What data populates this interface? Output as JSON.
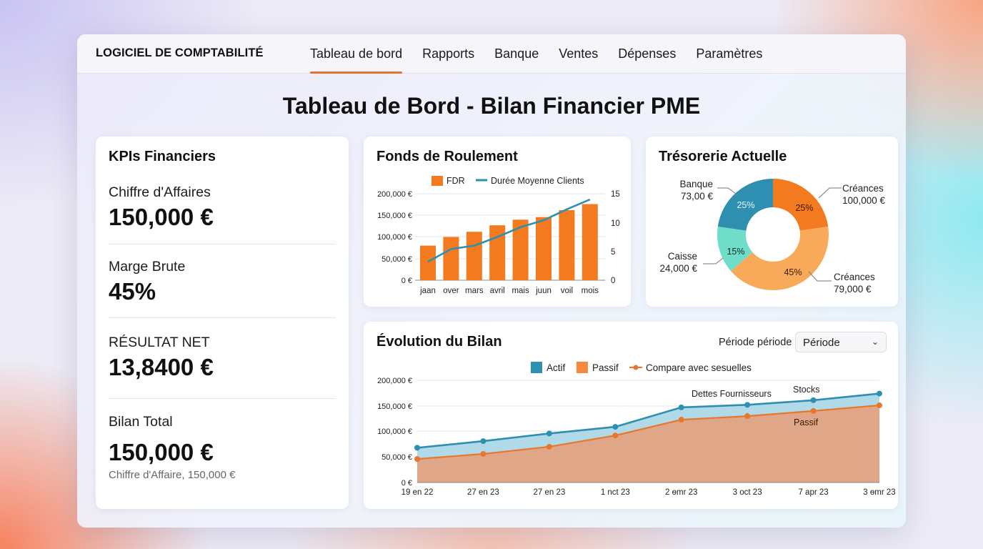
{
  "app": {
    "title": "LOGICIEL DE COMPTABILITÉ",
    "nav": [
      {
        "label": "Tableau de bord",
        "active": true
      },
      {
        "label": "Rapports",
        "active": false
      },
      {
        "label": "Banque",
        "active": false
      },
      {
        "label": "Ventes",
        "active": false
      },
      {
        "label": "Dépenses",
        "active": false
      },
      {
        "label": "Paramètres",
        "active": false
      }
    ]
  },
  "page": {
    "title": "Tableau de Bord - Bilan Financier PME"
  },
  "kpis": {
    "title": "KPIs Financiers",
    "items": [
      {
        "label": "Chiffre d'Affaires",
        "value": "150,000 €"
      },
      {
        "label": "Marge Brute",
        "value": "45%"
      },
      {
        "label": "RÉSULTAT NET",
        "value": "13,8400 €"
      },
      {
        "label": "Bilan Total",
        "value": "150,000 €",
        "note": "Chiffre d'Affaire, 150,000 €"
      }
    ]
  },
  "colors": {
    "orange": "#f47a20",
    "teal": "#2e8fb0",
    "mint": "#6fddc8",
    "light_orange": "#f8a95a",
    "accent": "#e3742f"
  },
  "fdr": {
    "title": "Fonds de Roulement",
    "legend": [
      "FDR",
      "Durée Moyenne Clients"
    ],
    "y_left_ticks": [
      "200,000 €",
      "150,000 €",
      "100,000 €",
      "50,000 €",
      "0 €"
    ],
    "y_right_ticks": [
      "15",
      "10",
      "5",
      "0"
    ]
  },
  "tresorerie": {
    "title": "Trésorerie Actuelle",
    "slices": [
      {
        "name": "Créances",
        "amount": "100,000 €",
        "pct": "25%"
      },
      {
        "name": "Créances",
        "amount": "79,000 €",
        "pct": "45%"
      },
      {
        "name": "Caisse",
        "amount": "24,000 €",
        "pct": "15%"
      },
      {
        "name": "Banque",
        "amount": "73,00 €",
        "pct": "25%"
      }
    ]
  },
  "bilan": {
    "title": "Évolution du Bilan",
    "period_label": "Période période",
    "period_value": "Période",
    "legend": [
      "Actif",
      "Passif",
      "Compare avec sesuelles"
    ],
    "y_ticks": [
      "200,000 €",
      "150,000 €",
      "100,000 €",
      "50,000 €",
      "0 €"
    ],
    "annotations": [
      "Dettes Fournisseurs",
      "Stocks",
      "Passif"
    ]
  },
  "chart_data": [
    {
      "type": "bar",
      "title": "Fonds de Roulement",
      "categories": [
        "jaan",
        "over",
        "mars",
        "avril",
        "mais",
        "juun",
        "voil",
        "mois"
      ],
      "series": [
        {
          "name": "FDR",
          "type": "bar",
          "axis": "left",
          "values": [
            80000,
            100000,
            112000,
            127000,
            140000,
            146000,
            162000,
            176000
          ]
        },
        {
          "name": "Durée Moyenne Clients",
          "type": "line",
          "axis": "right",
          "values": [
            3.2,
            5.4,
            6.0,
            7.5,
            9.2,
            10.4,
            12.3,
            14.0
          ]
        }
      ],
      "ylim_left": [
        0,
        200000
      ],
      "ylim_right": [
        0,
        15
      ],
      "legend_position": "top",
      "grid": true
    },
    {
      "type": "pie",
      "title": "Trésorerie Actuelle",
      "donut": true,
      "categories": [
        "Créances (100,000 €)",
        "Créances (79,000 €)",
        "Caisse (24,000 €)",
        "Banque (73,00 €)"
      ],
      "values": [
        25,
        45,
        15,
        25
      ]
    },
    {
      "type": "area",
      "title": "Évolution du Bilan",
      "x": [
        "19 en 22",
        "27 en 23",
        "27 en 23",
        "1 nct 23",
        "2 ѳmr 23",
        "3 oct 23",
        "7 apr 23",
        "3 ѳmr 23"
      ],
      "series": [
        {
          "name": "Actif",
          "values": [
            68000,
            81000,
            96000,
            109000,
            147000,
            152000,
            161000,
            174000
          ]
        },
        {
          "name": "Passif",
          "values": [
            46000,
            56000,
            70000,
            92000,
            123000,
            130000,
            140000,
            151000
          ]
        }
      ],
      "ylim": [
        0,
        200000
      ],
      "legend": [
        "Actif",
        "Passif",
        "Compare avec sesuelles"
      ],
      "annotations": [
        "Dettes Fournisseurs",
        "Stocks",
        "Passif"
      ],
      "grid": true
    }
  ]
}
